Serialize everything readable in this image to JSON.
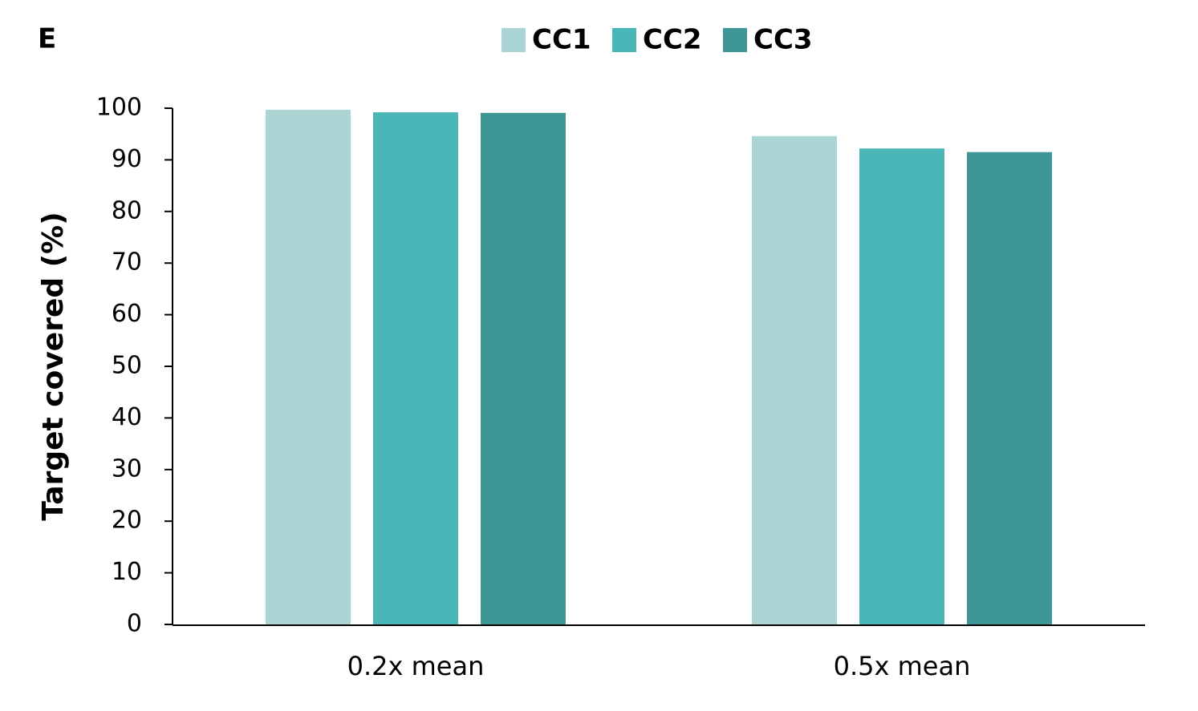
{
  "chart_data": {
    "type": "bar",
    "panel_label": "E",
    "ylabel": "Target covered (%)",
    "categories": [
      "0.2x mean",
      "0.5x mean"
    ],
    "series": [
      {
        "name": "CC1",
        "color": "#abd5d5",
        "values": [
          99.7,
          94.6
        ]
      },
      {
        "name": "CC2",
        "color": "#4bb6b7",
        "values": [
          99.2,
          92.2
        ]
      },
      {
        "name": "CC3",
        "color": "#3e9696",
        "values": [
          99.1,
          91.5
        ]
      }
    ],
    "ylim": [
      0,
      100
    ],
    "yticks": [
      0,
      10,
      20,
      30,
      40,
      50,
      60,
      70,
      80,
      90,
      100
    ],
    "grid": false
  }
}
